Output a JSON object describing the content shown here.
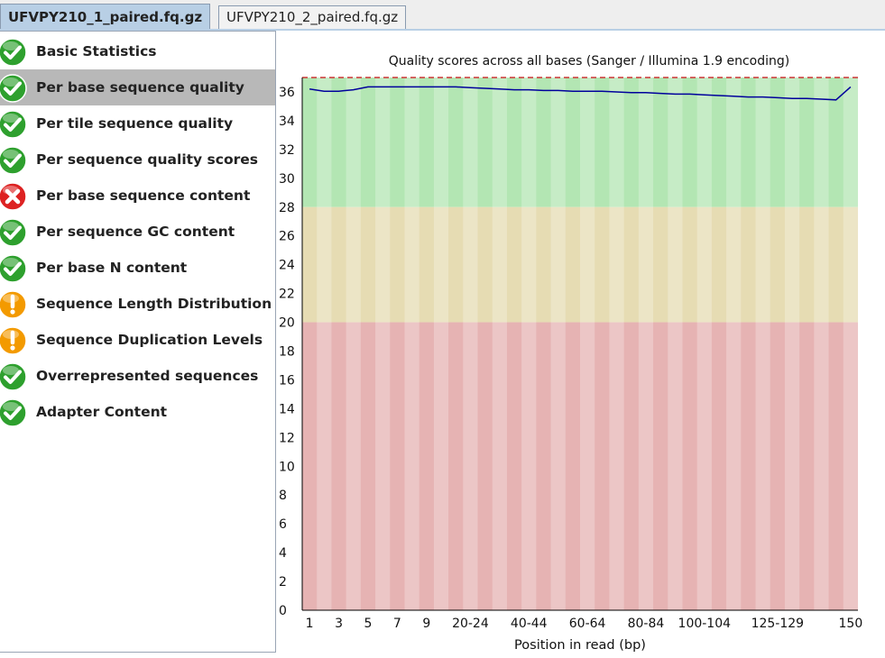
{
  "tabs": [
    {
      "label": "UFVPY210_1_paired.fq.gz",
      "active": true
    },
    {
      "label": "UFVPY210_2_paired.fq.gz",
      "active": false
    }
  ],
  "modules": [
    {
      "label": "Basic Statistics",
      "status": "pass",
      "icon": "check-icon"
    },
    {
      "label": "Per base sequence quality",
      "status": "pass",
      "icon": "check-icon",
      "selected": true
    },
    {
      "label": "Per tile sequence quality",
      "status": "pass",
      "icon": "check-icon"
    },
    {
      "label": "Per sequence quality scores",
      "status": "pass",
      "icon": "check-icon"
    },
    {
      "label": "Per base sequence content",
      "status": "fail",
      "icon": "cross-icon"
    },
    {
      "label": "Per sequence GC content",
      "status": "pass",
      "icon": "check-icon"
    },
    {
      "label": "Per base N content",
      "status": "pass",
      "icon": "check-icon"
    },
    {
      "label": "Sequence Length Distribution",
      "status": "warn",
      "icon": "warning-icon"
    },
    {
      "label": "Sequence Duplication Levels",
      "status": "warn",
      "icon": "warning-icon"
    },
    {
      "label": "Overrepresented sequences",
      "status": "pass",
      "icon": "check-icon"
    },
    {
      "label": "Adapter Content",
      "status": "pass",
      "icon": "check-icon"
    }
  ],
  "colors": {
    "pass": "#2ea02e",
    "fail": "#dd2222",
    "warn": "#f39a00",
    "zone_good": "#b3e6b3",
    "zone_ok": "#e6dcb3",
    "zone_bad": "#e6b3b3",
    "line": "#00009c",
    "max_line": "#cc3333"
  },
  "chart_data": {
    "type": "line",
    "title": "Quality scores across all bases (Sanger / Illumina 1.9 encoding)",
    "xlabel": "Position in read (bp)",
    "ylabel": "",
    "ylim": [
      0,
      37
    ],
    "yticks": [
      0,
      2,
      4,
      6,
      8,
      10,
      12,
      14,
      16,
      18,
      20,
      22,
      24,
      26,
      28,
      30,
      32,
      34,
      36
    ],
    "zones": [
      {
        "from": 28,
        "to": 37,
        "label": "good"
      },
      {
        "from": 20,
        "to": 28,
        "label": "reasonable"
      },
      {
        "from": 0,
        "to": 20,
        "label": "poor"
      }
    ],
    "categories": [
      "1",
      "2",
      "3",
      "4",
      "5",
      "6",
      "7",
      "8",
      "9",
      "10-14",
      "15-19",
      "20-24",
      "25-29",
      "30-34",
      "35-39",
      "40-44",
      "45-49",
      "50-54",
      "55-59",
      "60-64",
      "65-69",
      "70-74",
      "75-79",
      "80-84",
      "85-89",
      "90-94",
      "95-99",
      "100-104",
      "105-109",
      "110-114",
      "115-119",
      "120-124",
      "125-129",
      "130-134",
      "135-139",
      "140-144",
      "145-149",
      "150"
    ],
    "tick_labels": [
      "1",
      "3",
      "5",
      "7",
      "9",
      "20-24",
      "40-44",
      "60-64",
      "80-84",
      "100-104",
      "125-129",
      "150"
    ],
    "series": [
      {
        "values": [
          36.2,
          36.05,
          36.05,
          36.15,
          36.35,
          36.35,
          36.35,
          36.35,
          36.35,
          36.35,
          36.35,
          36.3,
          36.25,
          36.2,
          36.15,
          36.15,
          36.1,
          36.1,
          36.05,
          36.05,
          36.05,
          36.0,
          35.95,
          35.95,
          35.9,
          35.85,
          35.85,
          35.8,
          35.75,
          35.7,
          35.65,
          35.65,
          35.6,
          35.55,
          35.55,
          35.5,
          35.45,
          36.35
        ]
      }
    ]
  }
}
